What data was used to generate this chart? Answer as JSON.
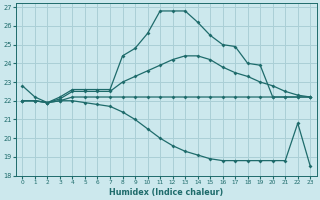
{
  "bg_color": "#cce8ed",
  "grid_color": "#aacfd6",
  "line_color": "#1e6b6b",
  "xlabel": "Humidex (Indice chaleur)",
  "xlim": [
    -0.5,
    23.5
  ],
  "ylim": [
    18,
    27.2
  ],
  "xticks": [
    0,
    1,
    2,
    3,
    4,
    5,
    6,
    7,
    8,
    9,
    10,
    11,
    12,
    13,
    14,
    15,
    16,
    17,
    18,
    19,
    20,
    21,
    22,
    23
  ],
  "yticks": [
    18,
    19,
    20,
    21,
    22,
    23,
    24,
    25,
    26,
    27
  ],
  "s1_x": [
    0,
    1,
    2,
    3,
    4,
    5,
    6,
    7,
    8,
    9,
    10,
    11,
    12,
    13,
    14,
    15,
    16,
    17,
    18,
    19,
    20,
    21,
    22,
    23
  ],
  "s1_y": [
    22.8,
    22.2,
    21.9,
    22.2,
    22.6,
    22.6,
    22.6,
    22.6,
    24.4,
    24.8,
    25.6,
    26.8,
    26.8,
    26.8,
    26.2,
    25.5,
    25.0,
    24.9,
    24.0,
    23.9,
    22.2,
    22.2,
    22.2,
    22.2
  ],
  "s2_x": [
    0,
    1,
    2,
    3,
    4,
    5,
    6,
    7,
    8,
    9,
    10,
    11,
    12,
    13,
    14,
    15,
    16,
    17,
    18,
    19,
    20,
    21,
    22,
    23
  ],
  "s2_y": [
    22.0,
    22.0,
    21.9,
    22.1,
    22.5,
    22.5,
    22.5,
    22.5,
    23.0,
    23.3,
    23.6,
    23.9,
    24.2,
    24.4,
    24.4,
    24.2,
    23.8,
    23.5,
    23.3,
    23.0,
    22.8,
    22.5,
    22.3,
    22.2
  ],
  "s3_x": [
    0,
    1,
    2,
    3,
    4,
    5,
    6,
    7,
    8,
    9,
    10,
    11,
    12,
    13,
    14,
    15,
    16,
    17,
    18,
    19,
    20,
    21,
    22,
    23
  ],
  "s3_y": [
    22.0,
    22.0,
    21.9,
    22.0,
    22.2,
    22.2,
    22.2,
    22.2,
    22.2,
    22.2,
    22.2,
    22.2,
    22.2,
    22.2,
    22.2,
    22.2,
    22.2,
    22.2,
    22.2,
    22.2,
    22.2,
    22.2,
    22.2,
    22.2
  ],
  "s4_x": [
    0,
    1,
    2,
    3,
    4,
    5,
    6,
    7,
    8,
    9,
    10,
    11,
    12,
    13,
    14,
    15,
    16,
    17,
    18,
    19,
    20,
    21,
    22,
    23
  ],
  "s4_y": [
    22.0,
    22.0,
    21.9,
    22.0,
    22.0,
    21.9,
    21.8,
    21.7,
    21.4,
    21.0,
    20.5,
    20.0,
    19.6,
    19.3,
    19.1,
    18.9,
    18.8,
    18.8,
    18.8,
    18.8,
    18.8,
    18.8,
    20.8,
    18.5
  ]
}
